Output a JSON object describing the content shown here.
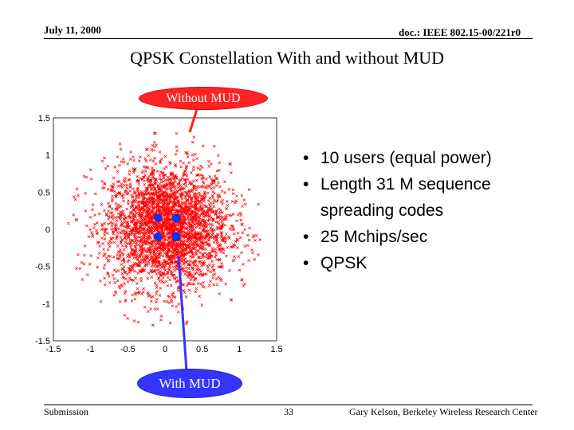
{
  "header": {
    "date": "July 11, 2000",
    "doc_id": "doc.: IEEE 802.15-00/221r0"
  },
  "title": "QPSK Constellation With and without MUD",
  "callouts": {
    "without": "Without MUD",
    "with": "With MUD",
    "without_color": "#ff2323",
    "with_color": "#3535ff"
  },
  "bullets": [
    "10 users (equal power)",
    "Length 31 M sequence spreading codes",
    "25 Mchips/sec",
    "QPSK"
  ],
  "chart_data": {
    "type": "scatter",
    "title": "",
    "xlabel": "",
    "ylabel": "",
    "xlim": [
      -1.5,
      1.5
    ],
    "ylim": [
      -1.5,
      1.5
    ],
    "x_ticks": [
      "-1.5",
      "-1",
      "-0.5",
      "0",
      "0.5",
      "1",
      "1.5"
    ],
    "y_ticks": [
      "1.5",
      "1",
      "0.5",
      "0",
      "-0.5",
      "-1",
      "-1.5"
    ],
    "series": [
      {
        "color": "#ff0000",
        "marker": "x",
        "distribution": "dense cloud centered at origin, radius ~1.2",
        "approx_count": 3000
      },
      {
        "color": "#0033ff",
        "marker": "dot",
        "points": [
          [
            -0.1,
            0.15
          ],
          [
            0.15,
            0.15
          ],
          [
            -0.1,
            -0.1
          ],
          [
            0.15,
            -0.1
          ]
        ]
      }
    ]
  },
  "footer": {
    "left": "Submission",
    "page": "33",
    "right": "Gary Kelson, Berkeley Wireless Research Center"
  }
}
